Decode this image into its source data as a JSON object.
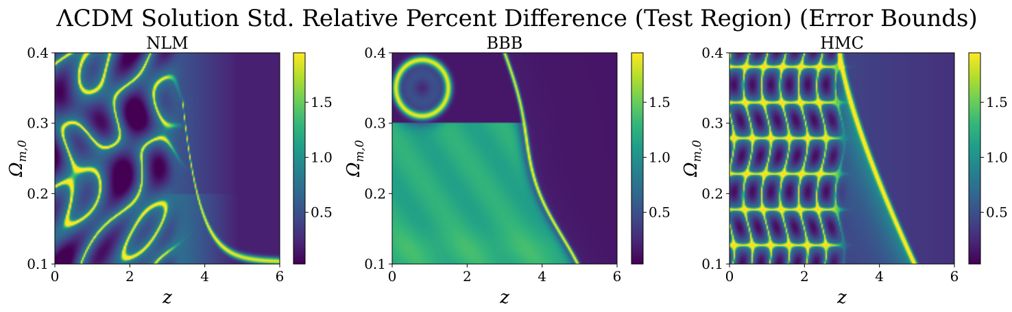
{
  "figure": {
    "title": "ΛCDM Solution Std. Relative Percent Difference (Test Region) (Error Bounds)"
  },
  "colormap": {
    "name": "viridis",
    "stops": [
      "#440154",
      "#482878",
      "#3e4a89",
      "#31688e",
      "#26828e",
      "#1f9e89",
      "#35b779",
      "#6ece58",
      "#b5de2b",
      "#fde725"
    ]
  },
  "chart_data": [
    {
      "type": "heatmap",
      "title": "NLM",
      "xlabel": "z",
      "ylabel": "Ω_m,0",
      "ylabel_main": "Ω",
      "ylabel_sub": "m,0",
      "xlim": [
        0,
        6
      ],
      "ylim": [
        0.1,
        0.4
      ],
      "xticks": [
        "0",
        "2",
        "4",
        "6"
      ],
      "yticks": [
        "0.1",
        "0.2",
        "0.3",
        "0.4"
      ],
      "colorbar": {
        "range": [
          0.03,
          1.95
        ],
        "ticks": [
          "0.5",
          "1.0",
          "1.5"
        ]
      },
      "features": [
        {
          "kind": "uniform",
          "region": "z > 3.2",
          "value": 0.2
        },
        {
          "kind": "peak_band",
          "description": "bright band along Ω_m,0 ≈ 0.105 for z from 3.5 to 6",
          "value": 1.9
        },
        {
          "kind": "oscillating_contours",
          "region": "0 < z < 3",
          "min": 0.05,
          "max": 1.9
        }
      ]
    },
    {
      "type": "heatmap",
      "title": "BBB",
      "xlabel": "z",
      "ylabel": "Ω_m,0",
      "ylabel_main": "Ω",
      "ylabel_sub": "m,0",
      "xlim": [
        0,
        6
      ],
      "ylim": [
        0.1,
        0.4
      ],
      "xticks": [
        "0",
        "2",
        "4",
        "6"
      ],
      "yticks": [
        "0.1",
        "0.2",
        "0.3",
        "0.4"
      ],
      "colorbar": {
        "range": [
          0.03,
          1.95
        ],
        "ticks": [
          "0.5",
          "1.0",
          "1.5"
        ]
      },
      "features": [
        {
          "kind": "plateau",
          "region": "0 < z < 3, Ω_m,0 < 0.3",
          "value": 1.2
        },
        {
          "kind": "peak_band",
          "description": "thin bright ridge from (z 3, Ω 0.4) to (z 4.7, Ω 0.1)",
          "value": 1.9
        },
        {
          "kind": "uniform",
          "region": "z > 3.5",
          "value": 0.15
        }
      ]
    },
    {
      "type": "heatmap",
      "title": "HMC",
      "xlabel": "z",
      "ylabel": "Ω_m,0",
      "ylabel_main": "Ω",
      "ylabel_sub": "m,0",
      "xlim": [
        0,
        6
      ],
      "ylim": [
        0.1,
        0.4
      ],
      "xticks": [
        "0",
        "2",
        "4",
        "6"
      ],
      "yticks": [
        "0.1",
        "0.2",
        "0.3",
        "0.4"
      ],
      "colorbar": {
        "range": [
          0.03,
          1.95
        ],
        "ticks": [
          "0.5",
          "1.0",
          "1.5"
        ]
      },
      "features": [
        {
          "kind": "oscillating_contours",
          "region": "0 < z < 3",
          "min": 0.05,
          "max": 1.9
        },
        {
          "kind": "peak_band",
          "description": "ridge from (z 3, Ω 0.4) curving to (z 5, Ω 0.1)",
          "value": 1.9
        },
        {
          "kind": "uniform",
          "region": "z > 3.5",
          "value": 0.3
        }
      ]
    }
  ]
}
